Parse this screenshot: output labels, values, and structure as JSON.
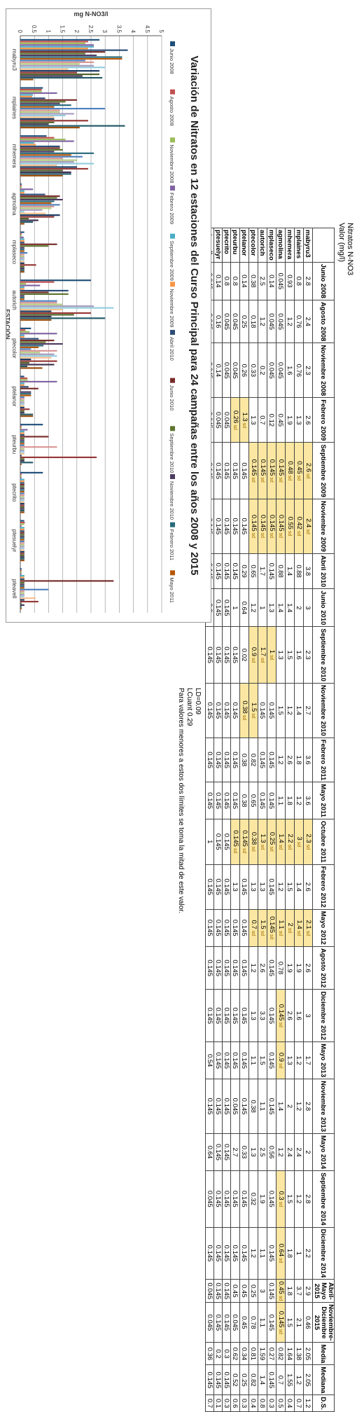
{
  "sheet_title": "Nitratos N-NO3",
  "units": "Valor (mg/l)",
  "station_col_header": "",
  "columns": [
    "Junio 2008",
    "Agosto 2008",
    "Noviembre 2008",
    "Febrero 2009",
    "Septiembre 2009",
    "Noviembre 2009",
    "Abril 2010",
    "Junio 2010",
    "Septiembre 2010",
    "Noviembre 2010",
    "Febrero 2011",
    "Mayo 2011",
    "Octubre 2011",
    "Febrero 2012",
    "Mayo 2012",
    "Agosto 2012",
    "Diciembre 2012",
    "Mayo 2013",
    "Noviembre 2013",
    "Mayo 2014",
    "Septiembre 2014",
    "Diciembre 2014",
    "Abril-Mayo 2015",
    "Noviembre-Diciembre 2015",
    "Media",
    "Mediana",
    "D.S."
  ],
  "rows": [
    {
      "station": "mabyru3",
      "values": [
        "2.8",
        "2.4",
        "2.3",
        "2.6",
        "2.6",
        "2.4",
        "3.8",
        "3",
        "2.3",
        "2.7",
        "3.6",
        "3.6",
        "2.3",
        "2.6",
        "2.1",
        "2.6",
        "3",
        "1.7",
        "2.8",
        "2",
        "2.8",
        "2.2",
        "2.9",
        "0.46",
        "2.05",
        "2.05",
        "1.2"
      ]
    },
    {
      "station": "mplaines",
      "values": [
        "0.8",
        "0.76",
        "0.76",
        "1.3",
        "0.45",
        "0.42",
        "0.88",
        "2",
        "1.6",
        "1.4",
        "1.8",
        "1.2",
        "3",
        "1.4",
        "1.4",
        "1.9",
        "1.6",
        "1.2",
        "1.2",
        "2.4",
        "1.2",
        "1",
        "3.7",
        "2.1",
        "1.38",
        "1.2",
        "0.7"
      ]
    },
    {
      "station": "mhemera",
      "values": [
        "0.93",
        "1.2",
        "1.6",
        "1.9",
        "0.48",
        "0.55",
        "1.4",
        "1.4",
        "1.5",
        "1.2",
        "2.6",
        "1.8",
        "2.2",
        "1.5",
        "2",
        "1.9",
        "2.6",
        "1.3",
        "2",
        "2.4",
        "1.5",
        "1.8",
        "1.8",
        "1.5",
        "1.64",
        "1.55",
        "0.4"
      ]
    },
    {
      "station": "agmolina",
      "values": [
        "0.045",
        "0.045",
        "0.045",
        "0.45",
        "0.145",
        "0.145",
        "0.88",
        "1.4",
        "1.3",
        "1.5",
        "1.2",
        "1.1",
        "1.4",
        "1.2",
        "1.1",
        "0.78",
        "0.145",
        "0.9",
        "1.4",
        "1.2",
        "0.3",
        "0.64",
        "0.45",
        "0.145",
        "0.82",
        "0.7",
        "0.5"
      ]
    },
    {
      "station": "mplaseco",
      "values": [
        "0.14",
        "0.045",
        "0.045",
        "0.12",
        "0.145",
        "0.145",
        "0.145",
        "1.3",
        "1",
        "0.145",
        "0.145",
        "0.145",
        "0.25",
        "0.145",
        "0.145",
        "0.145",
        "0.145",
        "0.145",
        "0.145",
        "0.56",
        "0.145",
        "0.145",
        "0.145",
        "0.145",
        "0.27",
        "0.145",
        "0.3"
      ]
    },
    {
      "station": "autorich",
      "values": [
        "2.5",
        "1.2",
        "0.2",
        "0.7",
        "0.145",
        "0.145",
        "1.7",
        "1",
        "1.7",
        "0.145",
        "0.145",
        "0.145",
        "1.3",
        "1.3",
        "1.5",
        "2.6",
        "3.3",
        "1.5",
        "1.1",
        "2.5",
        "1.9",
        "1.1",
        "3",
        "1.1",
        "1.59",
        "1.4",
        "0.8"
      ]
    },
    {
      "station": "ptecolor",
      "values": [
        "0.38",
        "0.18",
        "0.33",
        "1.3",
        "0.145",
        "0.145",
        "0.65",
        "1.2",
        "0.9",
        "1.5",
        "0.82",
        "0.65",
        "0.38",
        "1.3",
        "0.7",
        "1.2",
        "1.3",
        "1.1",
        "0.38",
        "1.3",
        "0.32",
        "1.2",
        "0.25",
        "0.78",
        "0.81",
        "0.82",
        "0.4"
      ]
    },
    {
      "station": "ptelanor",
      "values": [
        "0.14",
        "0.25",
        "0.26",
        "1.3",
        "0.145",
        "0.145",
        "0.29",
        "0.64",
        "0.02",
        "0.38",
        "0.38",
        "0.38",
        "0.145",
        "0.145",
        "0.145",
        "0.145",
        "0.145",
        "0.145",
        "0.145",
        "0.33",
        "0.145",
        "0.145",
        "0.45",
        "0.45",
        "0.34",
        "0.25",
        "0.3"
      ]
    },
    {
      "station": "pteurbu",
      "values": [
        "0.8",
        "0.045",
        "0.045",
        "0.26",
        "0.145",
        "0.145",
        "0.145",
        "1",
        "0.145",
        "0.145",
        "0.145",
        "0.145",
        "0.145",
        "1.3",
        "0.145",
        "0.145",
        "0.145",
        "0.145",
        "0.045",
        "2.7",
        "0.145",
        "0.145",
        "0.45",
        "0.045",
        "0.62",
        "0.52",
        "0.6"
      ]
    },
    {
      "station": "ptecrito",
      "values": [
        "0.8",
        "0.045",
        "0.045",
        "0.045",
        "0.145",
        "0.145",
        "0.145",
        "0.145",
        "0.145",
        "0.145",
        "0.145",
        "0.145",
        "0.145",
        "0.145",
        "0.145",
        "0.145",
        "0.145",
        "0.145",
        "0.145",
        "0.145",
        "0.145",
        "0.145",
        "0.145",
        "0.145",
        "0.3",
        "0.145",
        "0.3"
      ]
    },
    {
      "station": "ptesuelyr",
      "values": [
        "0.14",
        "0.16",
        "0.14",
        "0.045",
        "0.145",
        "0.145",
        "0.145",
        "0.145",
        "0.145",
        "0.145",
        "0.145",
        "0.145",
        "0.145",
        "0.145",
        "0.145",
        "0.145",
        "0.145",
        "0.145",
        "0.145",
        "0.145",
        "0.145",
        "0.145",
        "0.145",
        "0.145",
        "0.2",
        "0.145",
        "0.1"
      ]
    },
    {
      "station": "pteavell",
      "values": [
        "0.045",
        "0.045",
        "0.045",
        "0.045",
        "0.145",
        "0.145",
        "0.145",
        "3.3",
        "0.145",
        "0.145",
        "0.145",
        "0.145",
        "1",
        "0.145",
        "0.145",
        "0.145",
        "0.145",
        "0.54",
        "0.145",
        "0.64",
        "0.045",
        "0.145",
        "0.045",
        "0.045",
        "0.36",
        "0.145",
        "0.7"
      ]
    }
  ],
  "sd_text": "sd",
  "sd_cells": [
    {
      "row": 7,
      "col": 3
    },
    {
      "row": 8,
      "col": 3
    },
    {
      "row": 0,
      "col": 4
    },
    {
      "row": 1,
      "col": 4
    },
    {
      "row": 2,
      "col": 4
    },
    {
      "row": 3,
      "col": 4
    },
    {
      "row": 4,
      "col": 4
    },
    {
      "row": 5,
      "col": 4
    },
    {
      "row": 6,
      "col": 4
    },
    {
      "row": 0,
      "col": 5
    },
    {
      "row": 1,
      "col": 5
    },
    {
      "row": 2,
      "col": 5
    },
    {
      "row": 3,
      "col": 5
    },
    {
      "row": 4,
      "col": 5
    },
    {
      "row": 5,
      "col": 5
    },
    {
      "row": 6,
      "col": 5
    },
    {
      "row": 4,
      "col": 8
    },
    {
      "row": 5,
      "col": 8
    },
    {
      "row": 6,
      "col": 8
    },
    {
      "row": 6,
      "col": 9
    },
    {
      "row": 7,
      "col": 9
    },
    {
      "row": 0,
      "col": 12
    },
    {
      "row": 1,
      "col": 12
    },
    {
      "row": 2,
      "col": 12
    },
    {
      "row": 3,
      "col": 12
    },
    {
      "row": 4,
      "col": 12
    },
    {
      "row": 5,
      "col": 12
    },
    {
      "row": 6,
      "col": 12
    },
    {
      "row": 7,
      "col": 12
    },
    {
      "row": 8,
      "col": 12
    },
    {
      "row": 0,
      "col": 14
    },
    {
      "row": 1,
      "col": 14
    },
    {
      "row": 2,
      "col": 14
    },
    {
      "row": 3,
      "col": 14
    },
    {
      "row": 4,
      "col": 14
    },
    {
      "row": 5,
      "col": 14
    },
    {
      "row": 6,
      "col": 14
    },
    {
      "row": 3,
      "col": 16
    },
    {
      "row": 3,
      "col": 17
    },
    {
      "row": 3,
      "col": 20
    },
    {
      "row": 3,
      "col": 21
    },
    {
      "row": 3,
      "col": 22
    },
    {
      "row": 3,
      "col": 23
    }
  ],
  "notes": {
    "ld": "LD=0.09",
    "lcuant": "LCuant 0.29",
    "explanation": "Para valores menores a estos dos límites se toma la mitad de este valor."
  },
  "colors": {
    "palette": [
      "#1f4e79",
      "#c0504d",
      "#9bbb59",
      "#8064a2",
      "#4bacc6",
      "#f79646",
      "#2c4d75",
      "#772c2a",
      "#5f7530",
      "#4d3b62",
      "#276a7c",
      "#b65708",
      "#4f81bd",
      "#d99694",
      "#b3cc82",
      "#a99bbd",
      "#93cddd",
      "#fac090",
      "#17375e",
      "#953735",
      "#4f6228",
      "#3f3151",
      "#215967",
      "#974806"
    ]
  },
  "chart_data": {
    "type": "bar",
    "title": "Variación de Nitratos en 12 estaciones del Curso Principal para 24 campañas entre los años 2008 y 2015",
    "xlabel": "ESTACIÓN",
    "ylabel": "mg N-NO3/l",
    "ylim": [
      0,
      5
    ],
    "yticks": [
      "0",
      "0.5",
      "1",
      "1.5",
      "2",
      "2.5",
      "3",
      "3.5",
      "4",
      "4.5",
      "5"
    ],
    "grid": true,
    "legend_position": "top",
    "categories": [
      "mabyru3",
      "mplaines",
      "mhemera",
      "agmolina",
      "mplaseco",
      "autorich",
      "ptecolor",
      "ptelanor",
      "pteurbu",
      "ptecrito",
      "ptesuelyr",
      "pteavell"
    ],
    "series": [
      {
        "name": "Junio 2008",
        "values": [
          2.8,
          0.8,
          0.93,
          0.045,
          0.14,
          2.5,
          0.38,
          0.14,
          0.8,
          0.8,
          0.14,
          0.045
        ]
      },
      {
        "name": "Agosto 2008",
        "values": [
          2.4,
          0.76,
          1.2,
          0.045,
          0.045,
          1.2,
          0.18,
          0.25,
          0.045,
          0.045,
          0.16,
          0.045
        ]
      },
      {
        "name": "Noviembre 2008",
        "values": [
          2.3,
          0.76,
          1.6,
          0.045,
          0.045,
          0.2,
          0.33,
          0.26,
          0.045,
          0.045,
          0.14,
          0.045
        ]
      },
      {
        "name": "Febrero 2009",
        "values": [
          2.6,
          1.3,
          1.9,
          0.45,
          0.12,
          0.7,
          1.3,
          1.3,
          0.26,
          0.045,
          0.045,
          0.045
        ]
      },
      {
        "name": "Septiembre 2009",
        "values": [
          2.6,
          0.45,
          0.48,
          0.145,
          0.145,
          0.145,
          0.145,
          0.145,
          0.145,
          0.145,
          0.145,
          0.145
        ]
      },
      {
        "name": "Noviembre 2009",
        "values": [
          2.4,
          0.42,
          0.55,
          0.145,
          0.145,
          0.145,
          0.145,
          0.145,
          0.145,
          0.145,
          0.145,
          0.145
        ]
      },
      {
        "name": "Abril 2010",
        "values": [
          3.8,
          0.88,
          1.4,
          0.88,
          0.145,
          1.7,
          0.65,
          0.29,
          0.145,
          0.145,
          0.145,
          0.145
        ]
      },
      {
        "name": "Junio 2010",
        "values": [
          3,
          2,
          1.4,
          1.4,
          1.3,
          1,
          1.2,
          0.64,
          1,
          0.145,
          0.145,
          3.3
        ]
      },
      {
        "name": "Septiembre 2010",
        "values": [
          2.3,
          1.6,
          1.5,
          1.3,
          1,
          1.7,
          0.9,
          0.02,
          0.145,
          0.145,
          0.145,
          0.145
        ]
      },
      {
        "name": "Noviembre 2010",
        "values": [
          2.7,
          1.4,
          1.2,
          1.5,
          0.145,
          0.145,
          1.5,
          0.38,
          0.145,
          0.145,
          0.145,
          0.145
        ]
      },
      {
        "name": "Febrero 2011",
        "values": [
          3.6,
          1.8,
          2.6,
          1.2,
          0.145,
          0.145,
          0.82,
          0.38,
          0.145,
          0.145,
          0.145,
          0.145
        ]
      },
      {
        "name": "Mayo 2011",
        "values": [
          3.6,
          1.2,
          1.8,
          1.1,
          0.145,
          0.145,
          0.65,
          0.38,
          0.145,
          0.145,
          0.145,
          0.145
        ]
      },
      {
        "name": "Octubre 2011",
        "values": [
          2.3,
          3,
          2.2,
          1.4,
          0.25,
          1.3,
          0.38,
          0.145,
          0.145,
          0.145,
          0.145,
          1
        ]
      },
      {
        "name": "Febrero 2012",
        "values": [
          2.6,
          1.4,
          1.5,
          1.2,
          0.145,
          1.3,
          1.3,
          0.145,
          1.3,
          0.145,
          0.145,
          0.145
        ]
      },
      {
        "name": "Mayo 2012",
        "values": [
          2.1,
          1.4,
          2,
          1.1,
          0.145,
          1.5,
          0.7,
          0.145,
          0.145,
          0.145,
          0.145,
          0.145
        ]
      },
      {
        "name": "Agosto 2012",
        "values": [
          2.6,
          1.9,
          1.9,
          0.78,
          0.145,
          2.6,
          1.2,
          0.145,
          0.145,
          0.145,
          0.145,
          0.145
        ]
      },
      {
        "name": "Diciembre 2012",
        "values": [
          3,
          1.6,
          2.6,
          0.145,
          0.145,
          3.3,
          1.3,
          0.145,
          0.145,
          0.145,
          0.145,
          0.145
        ]
      },
      {
        "name": "Mayo 2013",
        "values": [
          1.7,
          1.2,
          1.3,
          0.9,
          0.145,
          1.5,
          1.1,
          0.145,
          0.145,
          0.145,
          0.145,
          0.54
        ]
      },
      {
        "name": "Noviembre 2013",
        "values": [
          2.8,
          1.2,
          2,
          1.4,
          0.145,
          1.1,
          0.38,
          0.145,
          0.045,
          0.145,
          0.145,
          0.145
        ]
      },
      {
        "name": "Mayo 2014",
        "values": [
          2,
          2.4,
          2.4,
          1.2,
          0.56,
          2.5,
          1.3,
          0.33,
          2.7,
          0.145,
          0.145,
          0.64
        ]
      },
      {
        "name": "Septiembre 2014",
        "values": [
          2.8,
          1.2,
          1.5,
          0.3,
          0.145,
          1.9,
          0.32,
          0.145,
          0.145,
          0.145,
          0.145,
          0.045
        ]
      },
      {
        "name": "Diciembre 2014",
        "values": [
          2.2,
          1,
          1.8,
          0.64,
          0.145,
          1.1,
          1.2,
          0.145,
          0.145,
          0.145,
          0.145,
          0.145
        ]
      },
      {
        "name": "Abril-Mayo 2015",
        "values": [
          2.9,
          3.7,
          1.8,
          0.45,
          0.145,
          3,
          0.25,
          0.45,
          0.45,
          0.145,
          0.145,
          0.045
        ]
      },
      {
        "name": "Noviembre-Diciembre 2015",
        "values": [
          0.46,
          2.1,
          1.5,
          0.145,
          0.145,
          1.1,
          0.78,
          0.45,
          0.045,
          0.145,
          0.145,
          0.045
        ]
      }
    ],
    "legend_labels": [
      "Junio 2008",
      "Agosto 2008",
      "Noviembre 2008",
      "Febrero 2009",
      "Septiembre 2009",
      "Noviembre 2009",
      "Abril 2010",
      "Junio 2010",
      "Septiembre 2010",
      "Noviembre 2010",
      "Febrero 2011",
      "Mayo 2011"
    ]
  }
}
